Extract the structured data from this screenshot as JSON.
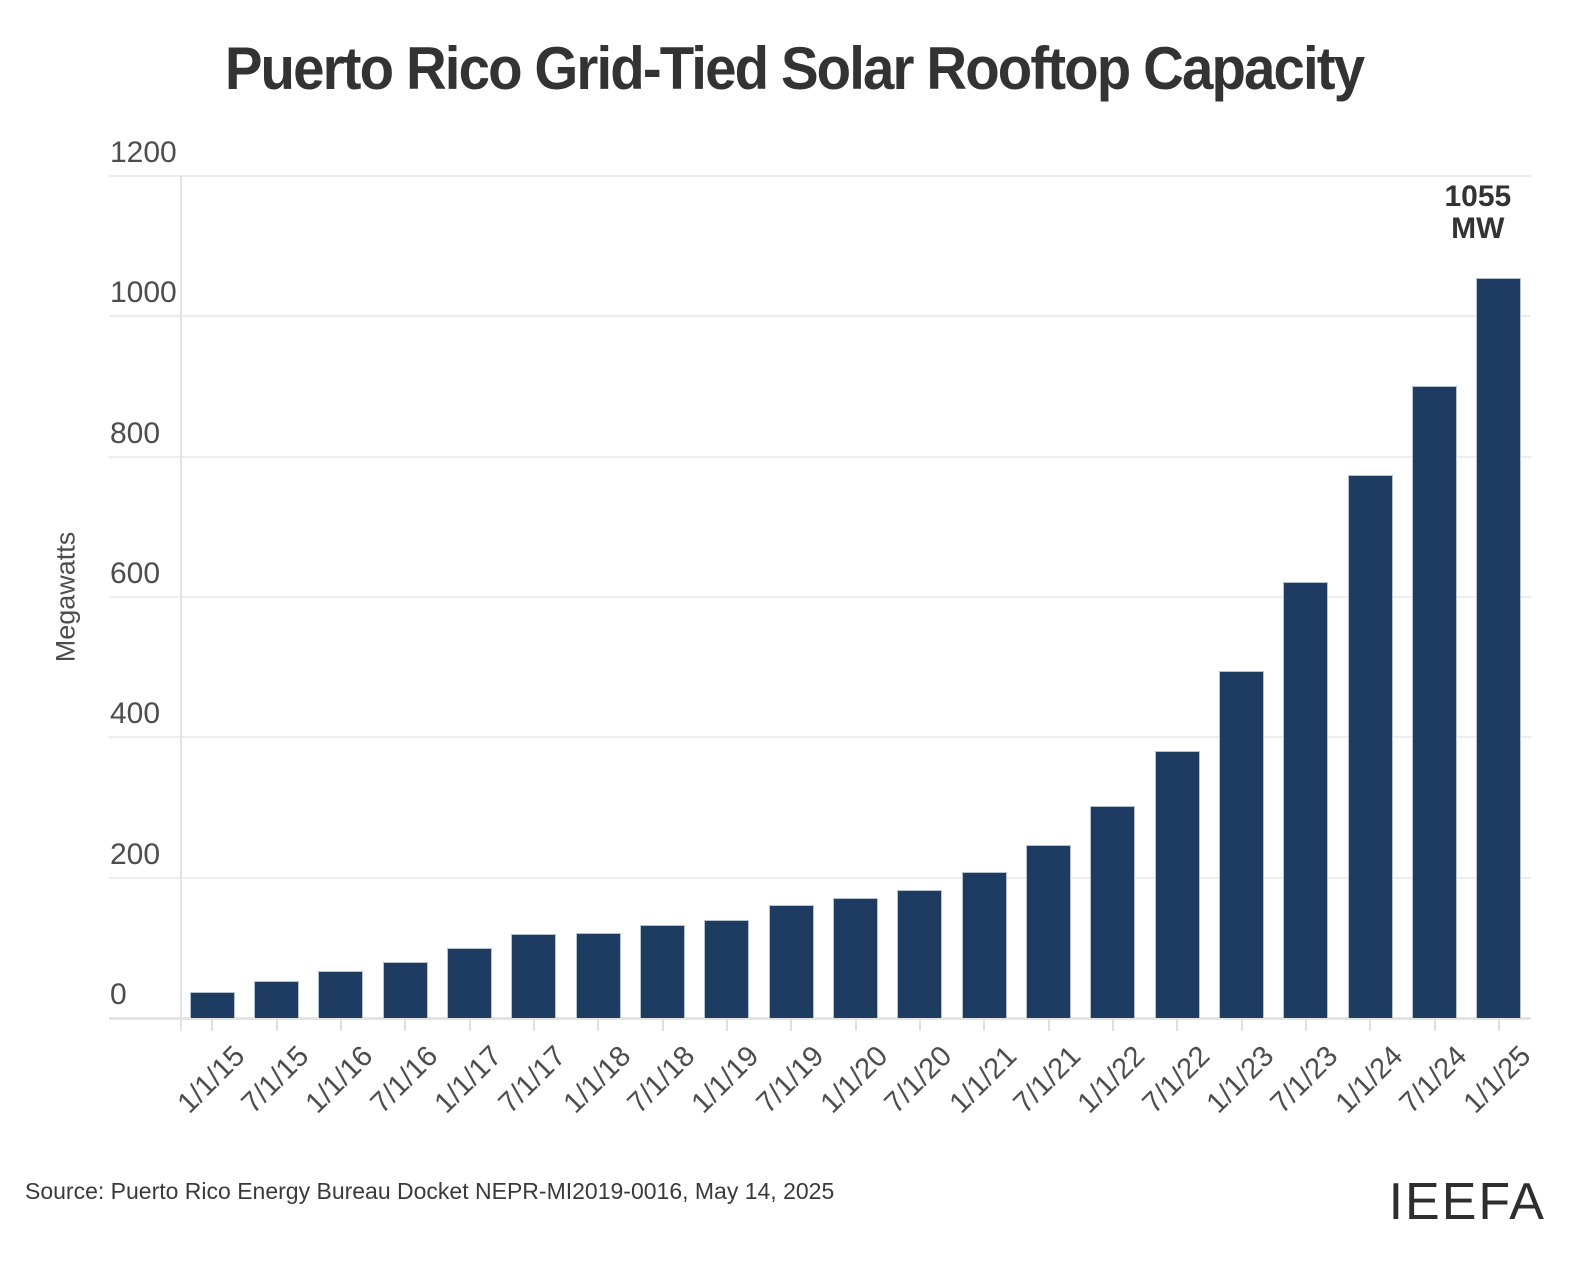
{
  "header": {
    "title": "Puerto Rico Grid-Tied Solar Rooftop Capacity"
  },
  "footer": {
    "source": "Source: Puerto Rico Energy Bureau Docket NEPR-MI2019-0016, May 14, 2025",
    "logo": "IEEFA"
  },
  "chart_data": {
    "type": "bar",
    "title": "Puerto Rico Grid-Tied Solar Rooftop Capacity",
    "xlabel": "",
    "ylabel": "Megawatts",
    "ylim": [
      0,
      1200
    ],
    "yticks": [
      0,
      200,
      400,
      600,
      800,
      1000,
      1200
    ],
    "grid": true,
    "legend": false,
    "bar_color": "#1e3c61",
    "categories": [
      "1/1/15",
      "7/1/15",
      "1/1/16",
      "7/1/16",
      "1/1/17",
      "7/1/17",
      "1/1/18",
      "7/1/18",
      "1/1/19",
      "7/1/19",
      "1/1/20",
      "7/1/20",
      "1/1/21",
      "7/1/21",
      "1/1/22",
      "7/1/22",
      "1/1/23",
      "7/1/23",
      "1/1/24",
      "7/1/24",
      "1/1/25"
    ],
    "values": [
      37,
      53,
      67,
      80,
      100,
      120,
      121,
      132,
      140,
      161,
      171,
      182,
      208,
      247,
      302,
      380,
      494,
      621,
      774,
      901,
      1055
    ],
    "annotation": {
      "lines": [
        "1055",
        "MW"
      ],
      "category": "1/1/25",
      "value": 1055
    }
  }
}
